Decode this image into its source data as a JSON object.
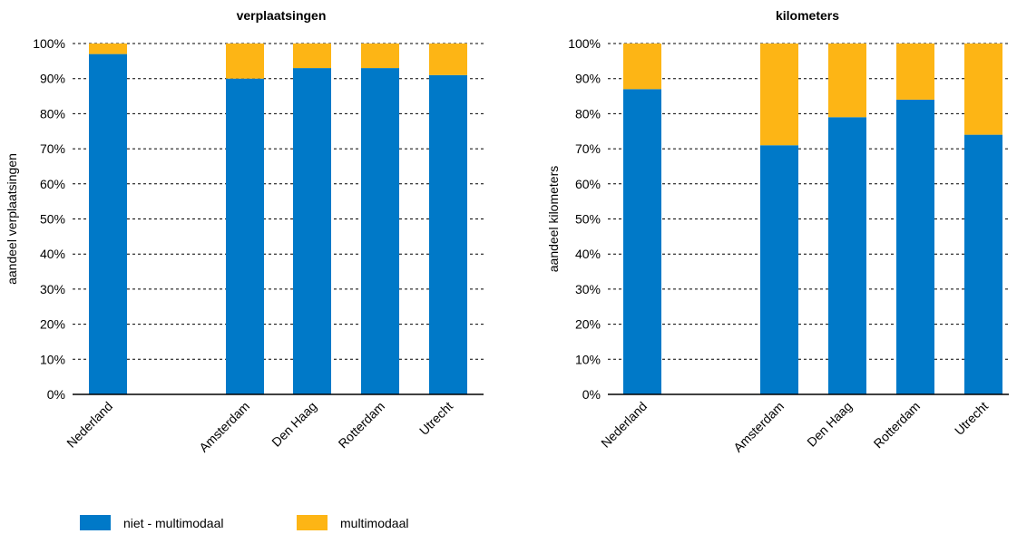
{
  "colors": {
    "niet_multimodaal": "#0079c8",
    "multimodaal": "#fdb515",
    "grid": "#000000"
  },
  "legend": {
    "items": [
      {
        "label": "niet - multimodaal",
        "color": "#0079c8"
      },
      {
        "label": "multimodaal",
        "color": "#fdb515"
      }
    ]
  },
  "chart_data": [
    {
      "type": "bar",
      "stacked": true,
      "title": "verplaatsingen",
      "ylabel": "aandeel verplaatsingen",
      "xlabel": "",
      "ylim": [
        0,
        100
      ],
      "yticks": [
        "0%",
        "10%",
        "20%",
        "30%",
        "40%",
        "50%",
        "60%",
        "70%",
        "80%",
        "90%",
        "100%"
      ],
      "grid": true,
      "categories": [
        "Nederland",
        "Amsterdam",
        "Den Haag",
        "Rotterdam",
        "Utrecht"
      ],
      "series": [
        {
          "name": "niet - multimodaal",
          "values": [
            97,
            90,
            93,
            93,
            91
          ]
        },
        {
          "name": "multimodaal",
          "values": [
            3,
            10,
            7,
            7,
            9
          ]
        }
      ]
    },
    {
      "type": "bar",
      "stacked": true,
      "title": "kilometers",
      "ylabel": "aandeel kilometers",
      "xlabel": "",
      "ylim": [
        0,
        100
      ],
      "yticks": [
        "0%",
        "10%",
        "20%",
        "30%",
        "40%",
        "50%",
        "60%",
        "70%",
        "80%",
        "90%",
        "100%"
      ],
      "grid": true,
      "categories": [
        "Nederland",
        "Amsterdam",
        "Den Haag",
        "Rotterdam",
        "Utrecht"
      ],
      "series": [
        {
          "name": "niet - multimodaal",
          "values": [
            87,
            71,
            79,
            84,
            74
          ]
        },
        {
          "name": "multimodaal",
          "values": [
            13,
            29,
            21,
            16,
            26
          ]
        }
      ]
    }
  ]
}
